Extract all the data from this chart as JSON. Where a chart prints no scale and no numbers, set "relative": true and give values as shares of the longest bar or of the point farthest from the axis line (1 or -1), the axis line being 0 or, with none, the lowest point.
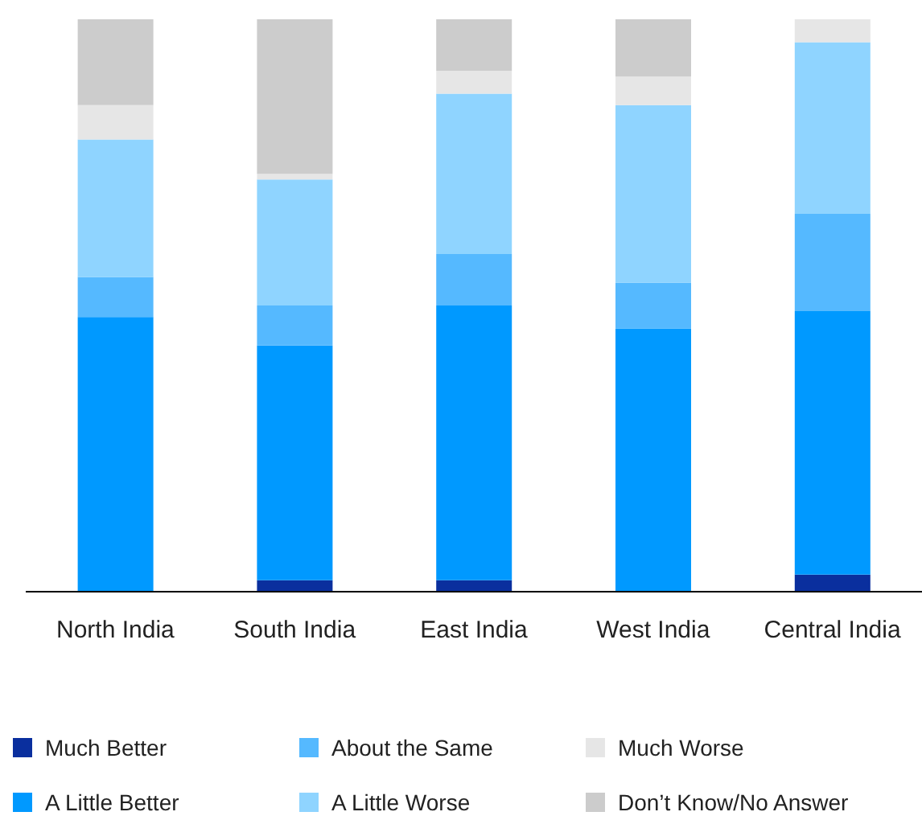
{
  "chart_data": {
    "type": "bar",
    "stacked": true,
    "relative": true,
    "legend": "bottom",
    "grid": false,
    "categories": [
      "North India",
      "South India",
      "East India",
      "West India",
      "Central India"
    ],
    "series": [
      {
        "name": "Much Better",
        "color": "#0a2f9e",
        "values": [
          0,
          0.02,
          0.02,
          0,
          0.03
        ]
      },
      {
        "name": "A Little Better",
        "color": "#0099ff",
        "values": [
          0.48,
          0.41,
          0.48,
          0.46,
          0.46
        ]
      },
      {
        "name": "About the Same",
        "color": "#55b9ff",
        "values": [
          0.07,
          0.07,
          0.09,
          0.08,
          0.17
        ]
      },
      {
        "name": "A Little Worse",
        "color": "#8fd4ff",
        "values": [
          0.24,
          0.22,
          0.28,
          0.31,
          0.3
        ]
      },
      {
        "name": "Much Worse",
        "color": "#e6e6e6",
        "values": [
          0.06,
          0.01,
          0.04,
          0.05,
          0.04
        ]
      },
      {
        "name": "Don’t Know/No Answer",
        "color": "#cccccc",
        "values": [
          0.15,
          0.27,
          0.09,
          0.1,
          0
        ]
      }
    ]
  }
}
